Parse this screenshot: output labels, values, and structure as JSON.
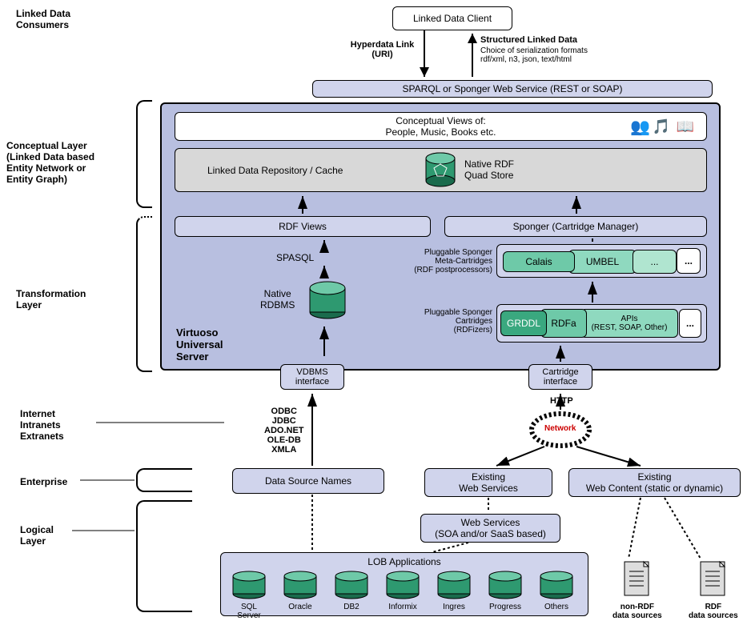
{
  "labels": {
    "consumers": "Linked Data\nConsumers",
    "conceptual": "Conceptual Layer\n(Linked Data based\nEntity Network or\nEntity Graph)",
    "transform": "Transformation\nLayer",
    "internet": "Internet\nIntranets\nExtranets",
    "enterprise": "Enterprise",
    "logical": "Logical\nLayer",
    "vus": "Virtuoso\nUniversal\nServer"
  },
  "boxes": {
    "client": "Linked Data Client",
    "sparql": "SPARQL or Sponger Web Service (REST or SOAP)",
    "views": "Conceptual Views of:\nPeople, Music, Books etc.",
    "repo": "Linked Data Repository / Cache",
    "quad": "Native RDF\nQuad Store",
    "rdfviews": "RDF Views",
    "sponger": "Sponger (Cartridge Manager)",
    "spasql": "SPASQL",
    "native": "Native\nRDBMS",
    "meta": "Pluggable Sponger\nMeta-Cartridges\n(RDF postprocessors)",
    "cart": "Pluggable Sponger\nCartridges\n(RDFizers)",
    "calais": "Calais",
    "umbel": "UMBEL",
    "grddl": "GRDDL",
    "rdfa": "RDFa",
    "apis": "APIs\n(REST, SOAP, Other)",
    "vdbms": "VDBMS\ninterface",
    "cartif": "Cartridge\ninterface",
    "odbc": "ODBC\nJDBC\nADO.NET\nOLE-DB\nXMLA",
    "http": "HTTP",
    "dsn": "Data Source Names",
    "ews": "Existing\nWeb Services",
    "ewc": "Existing\nWeb Content (static or dynamic)",
    "ws": "Web Services\n(SOA and/or SaaS based)",
    "lob": "LOB Applications",
    "network": "Network",
    "nonrdf": "non-RDF\ndata sources",
    "rdf": "RDF\ndata sources"
  },
  "arrows": {
    "hyper": "Hyperdata Link\n(URI)",
    "sld": "Structured Linked Data",
    "sld2": "Choice of serialization formats\nrdf/xml, n3, json, text/html"
  },
  "dbs": [
    "SQL\nServer",
    "Oracle",
    "DB2",
    "Informix",
    "Ingres",
    "Progress",
    "Others"
  ],
  "colors": {
    "lav": "#d0d4ec",
    "lav2": "#b8bfe0",
    "grey": "#d8d8d8",
    "teal1": "#3aa87f",
    "teal2": "#6ec9a8",
    "teal3": "#8fd9bf",
    "teal4": "#b0e5d0",
    "cyl": "#2e9970",
    "cylside": "#1a6b4d"
  }
}
